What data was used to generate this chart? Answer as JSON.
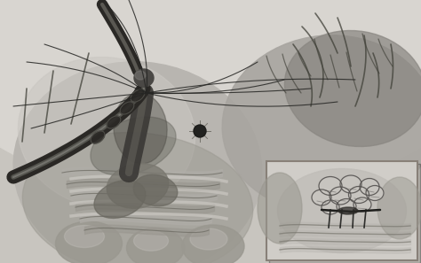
{
  "bg_color": "#c8c5bf",
  "fig_width": 4.74,
  "fig_height": 2.97,
  "dpi": 100,
  "light_bg": "#d4d1cb",
  "medium_gray": "#a8a5a0",
  "dark_gray": "#606058",
  "very_dark": "#1e1e1c",
  "instrument_color": "#2a2825",
  "tissue_light": "#c0bdb8",
  "tissue_mid": "#908d88",
  "tissue_dark": "#5a5850",
  "oment_ball": "#6a6860",
  "inset_bg": "#d0cdc8",
  "inset_border": "#888078",
  "suture_color": "#252523",
  "fold_color": "#6a6860"
}
